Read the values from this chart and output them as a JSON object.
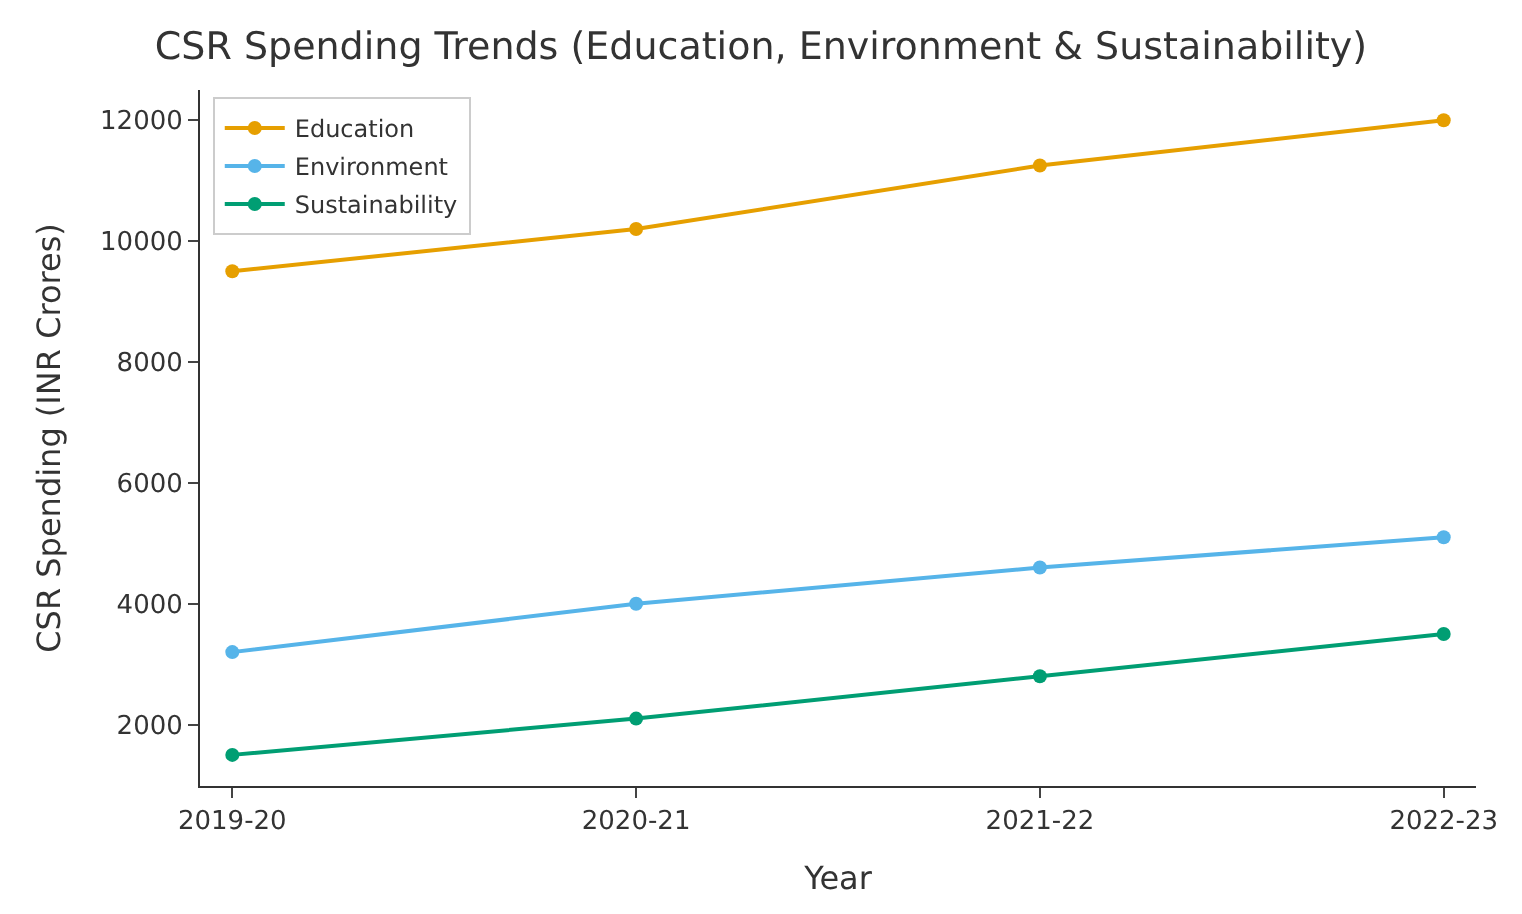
{
  "chart_data": {
    "type": "line",
    "title": "CSR Spending Trends (Education, Environment & Sustainability)",
    "xlabel": "Year",
    "ylabel": "CSR Spending (INR Crores)",
    "categories": [
      "2019-20",
      "2020-21",
      "2021-22",
      "2022-23"
    ],
    "series": [
      {
        "name": "Education",
        "color": "#e69f00",
        "values": [
          9500,
          10200,
          11250,
          12000
        ]
      },
      {
        "name": "Environment",
        "color": "#56b4e9",
        "values": [
          3200,
          4000,
          4600,
          5100
        ]
      },
      {
        "name": "Sustainability",
        "color": "#009e73",
        "values": [
          1500,
          2100,
          2800,
          3500
        ]
      }
    ],
    "ylim": [
      985,
      12500
    ],
    "yticks": [
      2000,
      4000,
      6000,
      8000,
      10000,
      12000
    ],
    "marker": "circle",
    "line_style": "solid",
    "legend": "top left"
  }
}
